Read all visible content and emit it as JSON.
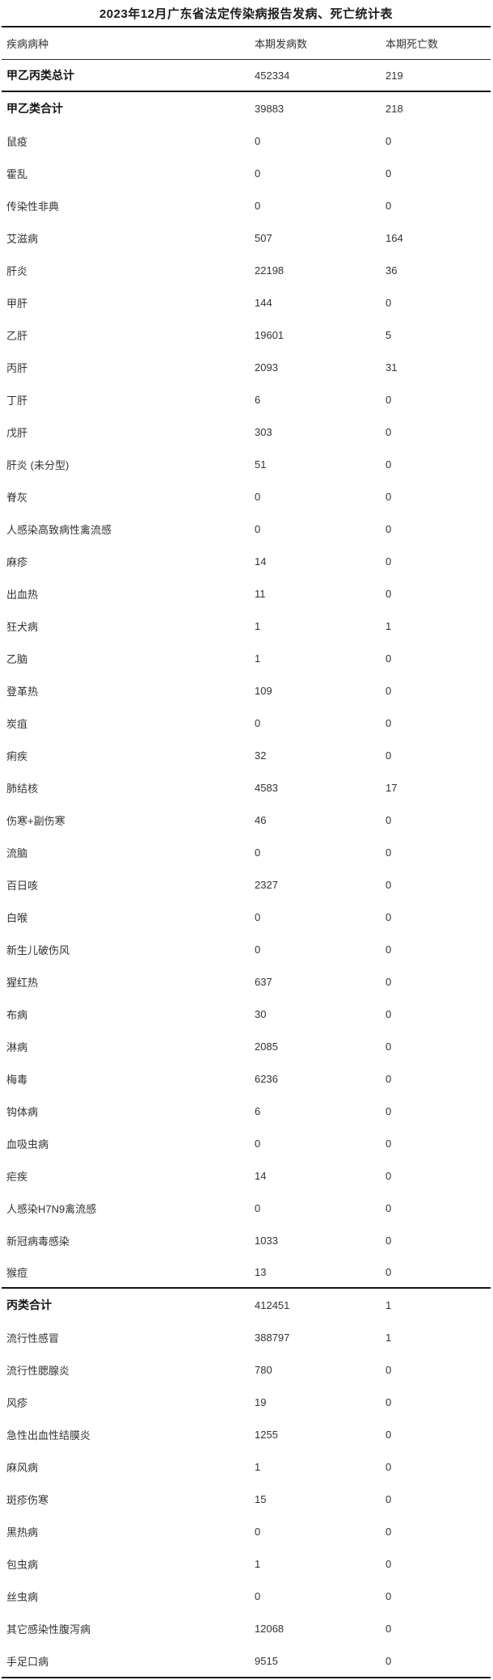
{
  "title": "2023年12月广东省法定传染病报告发病、死亡统计表",
  "table": {
    "columns": [
      "疾病病种",
      "本期发病数",
      "本期死亡数"
    ],
    "rows": [
      {
        "disease": "甲乙丙类总计",
        "cases": "452334",
        "deaths": "219",
        "bold": true,
        "rule_below": true
      },
      {
        "disease": "甲乙类合计",
        "cases": "39883",
        "deaths": "218",
        "bold": true,
        "rule_below": false
      },
      {
        "disease": "鼠疫",
        "cases": "0",
        "deaths": "0",
        "bold": false,
        "rule_below": false
      },
      {
        "disease": "霍乱",
        "cases": "0",
        "deaths": "0",
        "bold": false,
        "rule_below": false
      },
      {
        "disease": "传染性非典",
        "cases": "0",
        "deaths": "0",
        "bold": false,
        "rule_below": false
      },
      {
        "disease": "艾滋病",
        "cases": "507",
        "deaths": "164",
        "bold": false,
        "rule_below": false
      },
      {
        "disease": "肝炎",
        "cases": "22198",
        "deaths": "36",
        "bold": false,
        "rule_below": false
      },
      {
        "disease": "甲肝",
        "cases": "144",
        "deaths": "0",
        "bold": false,
        "rule_below": false
      },
      {
        "disease": "乙肝",
        "cases": "19601",
        "deaths": "5",
        "bold": false,
        "rule_below": false
      },
      {
        "disease": "丙肝",
        "cases": "2093",
        "deaths": "31",
        "bold": false,
        "rule_below": false
      },
      {
        "disease": "丁肝",
        "cases": "6",
        "deaths": "0",
        "bold": false,
        "rule_below": false
      },
      {
        "disease": "戊肝",
        "cases": "303",
        "deaths": "0",
        "bold": false,
        "rule_below": false
      },
      {
        "disease": "肝炎 (未分型)",
        "cases": "51",
        "deaths": "0",
        "bold": false,
        "rule_below": false
      },
      {
        "disease": "脊灰",
        "cases": "0",
        "deaths": "0",
        "bold": false,
        "rule_below": false
      },
      {
        "disease": "人感染高致病性禽流感",
        "cases": "0",
        "deaths": "0",
        "bold": false,
        "rule_below": false
      },
      {
        "disease": "麻疹",
        "cases": "14",
        "deaths": "0",
        "bold": false,
        "rule_below": false
      },
      {
        "disease": "出血热",
        "cases": "11",
        "deaths": "0",
        "bold": false,
        "rule_below": false
      },
      {
        "disease": "狂犬病",
        "cases": "1",
        "deaths": "1",
        "bold": false,
        "rule_below": false
      },
      {
        "disease": "乙脑",
        "cases": "1",
        "deaths": "0",
        "bold": false,
        "rule_below": false
      },
      {
        "disease": "登革热",
        "cases": "109",
        "deaths": "0",
        "bold": false,
        "rule_below": false
      },
      {
        "disease": "炭疽",
        "cases": "0",
        "deaths": "0",
        "bold": false,
        "rule_below": false
      },
      {
        "disease": "痢疾",
        "cases": "32",
        "deaths": "0",
        "bold": false,
        "rule_below": false
      },
      {
        "disease": "肺结核",
        "cases": "4583",
        "deaths": "17",
        "bold": false,
        "rule_below": false
      },
      {
        "disease": "伤寒+副伤寒",
        "cases": "46",
        "deaths": "0",
        "bold": false,
        "rule_below": false
      },
      {
        "disease": "流脑",
        "cases": "0",
        "deaths": "0",
        "bold": false,
        "rule_below": false
      },
      {
        "disease": "百日咳",
        "cases": "2327",
        "deaths": "0",
        "bold": false,
        "rule_below": false
      },
      {
        "disease": "白喉",
        "cases": "0",
        "deaths": "0",
        "bold": false,
        "rule_below": false
      },
      {
        "disease": "新生儿破伤风",
        "cases": "0",
        "deaths": "0",
        "bold": false,
        "rule_below": false
      },
      {
        "disease": "猩红热",
        "cases": "637",
        "deaths": "0",
        "bold": false,
        "rule_below": false
      },
      {
        "disease": "布病",
        "cases": "30",
        "deaths": "0",
        "bold": false,
        "rule_below": false
      },
      {
        "disease": "淋病",
        "cases": "2085",
        "deaths": "0",
        "bold": false,
        "rule_below": false
      },
      {
        "disease": "梅毒",
        "cases": "6236",
        "deaths": "0",
        "bold": false,
        "rule_below": false
      },
      {
        "disease": "钩体病",
        "cases": "6",
        "deaths": "0",
        "bold": false,
        "rule_below": false
      },
      {
        "disease": "血吸虫病",
        "cases": "0",
        "deaths": "0",
        "bold": false,
        "rule_below": false
      },
      {
        "disease": "疟疾",
        "cases": "14",
        "deaths": "0",
        "bold": false,
        "rule_below": false
      },
      {
        "disease": "人感染H7N9禽流感",
        "cases": "0",
        "deaths": "0",
        "bold": false,
        "rule_below": false
      },
      {
        "disease": "新冠病毒感染",
        "cases": "1033",
        "deaths": "0",
        "bold": false,
        "rule_below": false
      },
      {
        "disease": "猴痘",
        "cases": "13",
        "deaths": "0",
        "bold": false,
        "rule_below": true
      },
      {
        "disease": "丙类合计",
        "cases": "412451",
        "deaths": "1",
        "bold": true,
        "rule_below": false
      },
      {
        "disease": "流行性感冒",
        "cases": "388797",
        "deaths": "1",
        "bold": false,
        "rule_below": false
      },
      {
        "disease": "流行性腮腺炎",
        "cases": "780",
        "deaths": "0",
        "bold": false,
        "rule_below": false
      },
      {
        "disease": "风疹",
        "cases": "19",
        "deaths": "0",
        "bold": false,
        "rule_below": false
      },
      {
        "disease": "急性出血性结膜炎",
        "cases": "1255",
        "deaths": "0",
        "bold": false,
        "rule_below": false
      },
      {
        "disease": "麻风病",
        "cases": "1",
        "deaths": "0",
        "bold": false,
        "rule_below": false
      },
      {
        "disease": "斑疹伤寒",
        "cases": "15",
        "deaths": "0",
        "bold": false,
        "rule_below": false
      },
      {
        "disease": "黑热病",
        "cases": "0",
        "deaths": "0",
        "bold": false,
        "rule_below": false
      },
      {
        "disease": "包虫病",
        "cases": "1",
        "deaths": "0",
        "bold": false,
        "rule_below": false
      },
      {
        "disease": "丝虫病",
        "cases": "0",
        "deaths": "0",
        "bold": false,
        "rule_below": false
      },
      {
        "disease": "其它感染性腹泻病",
        "cases": "12068",
        "deaths": "0",
        "bold": false,
        "rule_below": false
      },
      {
        "disease": "手足口病",
        "cases": "9515",
        "deaths": "0",
        "bold": false,
        "rule_below": false
      }
    ]
  }
}
